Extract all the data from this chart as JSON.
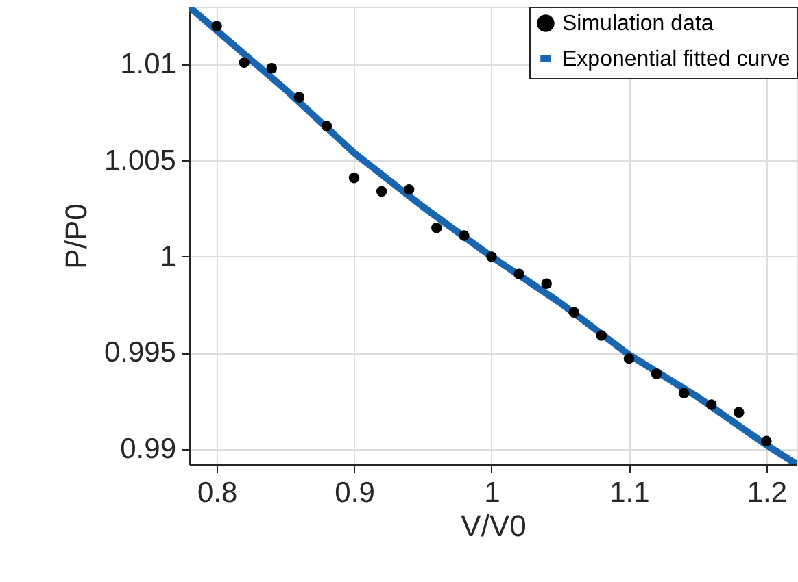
{
  "chart_data": {
    "type": "scatter",
    "xlabel": "V/V0",
    "ylabel": "P/P0",
    "xlim": [
      0.78,
      1.222
    ],
    "ylim": [
      0.9892,
      1.013
    ],
    "xticks": [
      0.8,
      0.9,
      1,
      1.1,
      1.2
    ],
    "yticks": [
      0.99,
      0.995,
      1,
      1.005,
      1.01
    ],
    "grid": true,
    "legend": "top right",
    "series": [
      {
        "name": "Simulation data",
        "marker": "circle",
        "color": "#000000",
        "x": [
          0.8,
          0.82,
          0.84,
          0.86,
          0.88,
          0.9,
          0.92,
          0.94,
          0.96,
          0.98,
          1.0,
          1.02,
          1.04,
          1.06,
          1.08,
          1.1,
          1.12,
          1.14,
          1.16,
          1.18,
          1.2
        ],
        "values": [
          1.012,
          1.0101,
          1.0098,
          1.0083,
          1.0068,
          1.0041,
          1.0034,
          1.0035,
          1.0015,
          1.0011,
          1.0,
          0.9991,
          0.9986,
          0.9971,
          0.9959,
          0.9947,
          0.9939,
          0.9929,
          0.9923,
          0.9919,
          0.9904
        ]
      },
      {
        "name": "Exponential fitted curve",
        "type": "line",
        "marker": "none",
        "line_style": "solid",
        "color": "#1a65b0",
        "x": [
          0.78,
          0.85,
          0.9,
          0.95,
          1.0,
          1.05,
          1.1,
          1.15,
          1.2,
          1.222
        ],
        "values": [
          1.013,
          1.0087,
          1.0054,
          1.0026,
          1.0,
          0.9976,
          0.9949,
          0.9927,
          0.9902,
          0.9892
        ]
      }
    ]
  }
}
